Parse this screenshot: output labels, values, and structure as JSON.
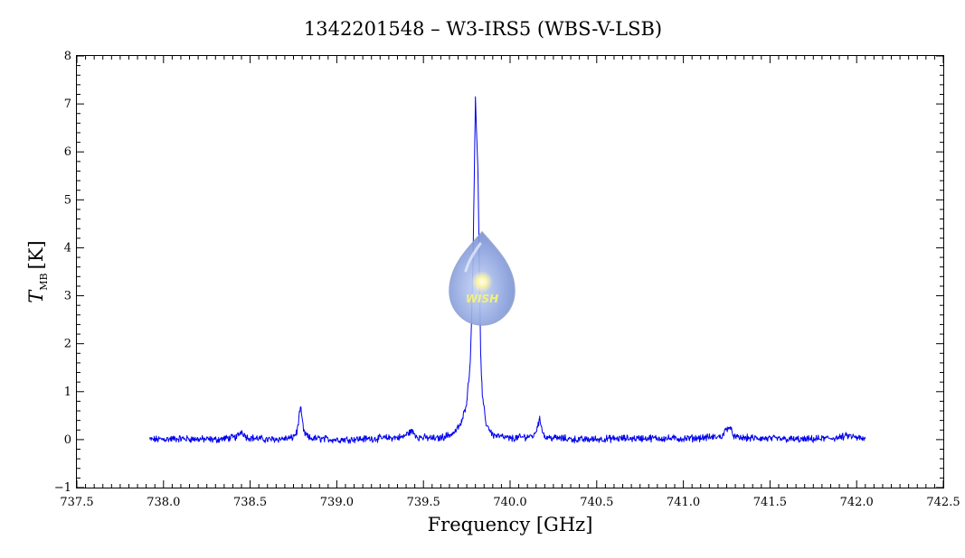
{
  "chart_data": {
    "type": "line",
    "title": "1342201548 – W3-IRS5 (WBS-V-LSB)",
    "xlabel": "Frequency [GHz]",
    "ylabel_main": "T",
    "ylabel_sub": "MB",
    "ylabel_unit": "[K]",
    "xlim": [
      737.5,
      742.5
    ],
    "ylim": [
      -1,
      8
    ],
    "x_ticks": [
      737.5,
      738.0,
      738.5,
      739.0,
      739.5,
      740.0,
      740.5,
      741.0,
      741.5,
      742.0,
      742.5
    ],
    "x_tick_labels": [
      "737.5",
      "738.0",
      "738.5",
      "739.0",
      "739.5",
      "740.0",
      "740.5",
      "741.0",
      "741.5",
      "742.0",
      "742.5"
    ],
    "y_ticks": [
      -1,
      0,
      1,
      2,
      3,
      4,
      5,
      6,
      7,
      8
    ],
    "y_tick_labels": [
      "−1",
      "0",
      "1",
      "2",
      "3",
      "4",
      "5",
      "6",
      "7",
      "8"
    ],
    "grid": false,
    "line_color": "#0000ee",
    "series": [
      {
        "x": [
          737.92,
          738.1,
          738.3,
          738.42,
          738.45,
          738.48,
          738.6,
          738.74,
          738.77,
          738.79,
          738.81,
          738.84,
          739.0,
          739.2,
          739.38,
          739.43,
          739.47,
          739.58,
          739.65,
          739.68,
          739.72,
          739.75,
          739.77,
          739.785,
          739.8,
          739.815,
          739.83,
          739.84,
          739.86,
          739.9,
          740.0,
          740.14,
          740.17,
          740.2,
          740.4,
          740.6,
          740.8,
          741.0,
          741.22,
          741.26,
          741.3,
          741.5,
          741.7,
          741.9,
          741.95,
          742.05
        ],
        "y": [
          0.0,
          0.02,
          0.0,
          0.05,
          0.18,
          0.05,
          0.0,
          0.03,
          0.15,
          0.68,
          0.15,
          0.03,
          0.0,
          0.02,
          0.05,
          0.18,
          0.05,
          0.02,
          0.1,
          0.15,
          0.35,
          0.8,
          1.6,
          3.5,
          7.15,
          5.5,
          1.8,
          0.9,
          0.35,
          0.1,
          0.02,
          0.08,
          0.42,
          0.05,
          0.0,
          0.02,
          0.03,
          0.02,
          0.06,
          0.28,
          0.04,
          0.02,
          0.0,
          0.04,
          0.08,
          0.0
        ]
      }
    ]
  },
  "logo": {
    "text": "WISH"
  }
}
